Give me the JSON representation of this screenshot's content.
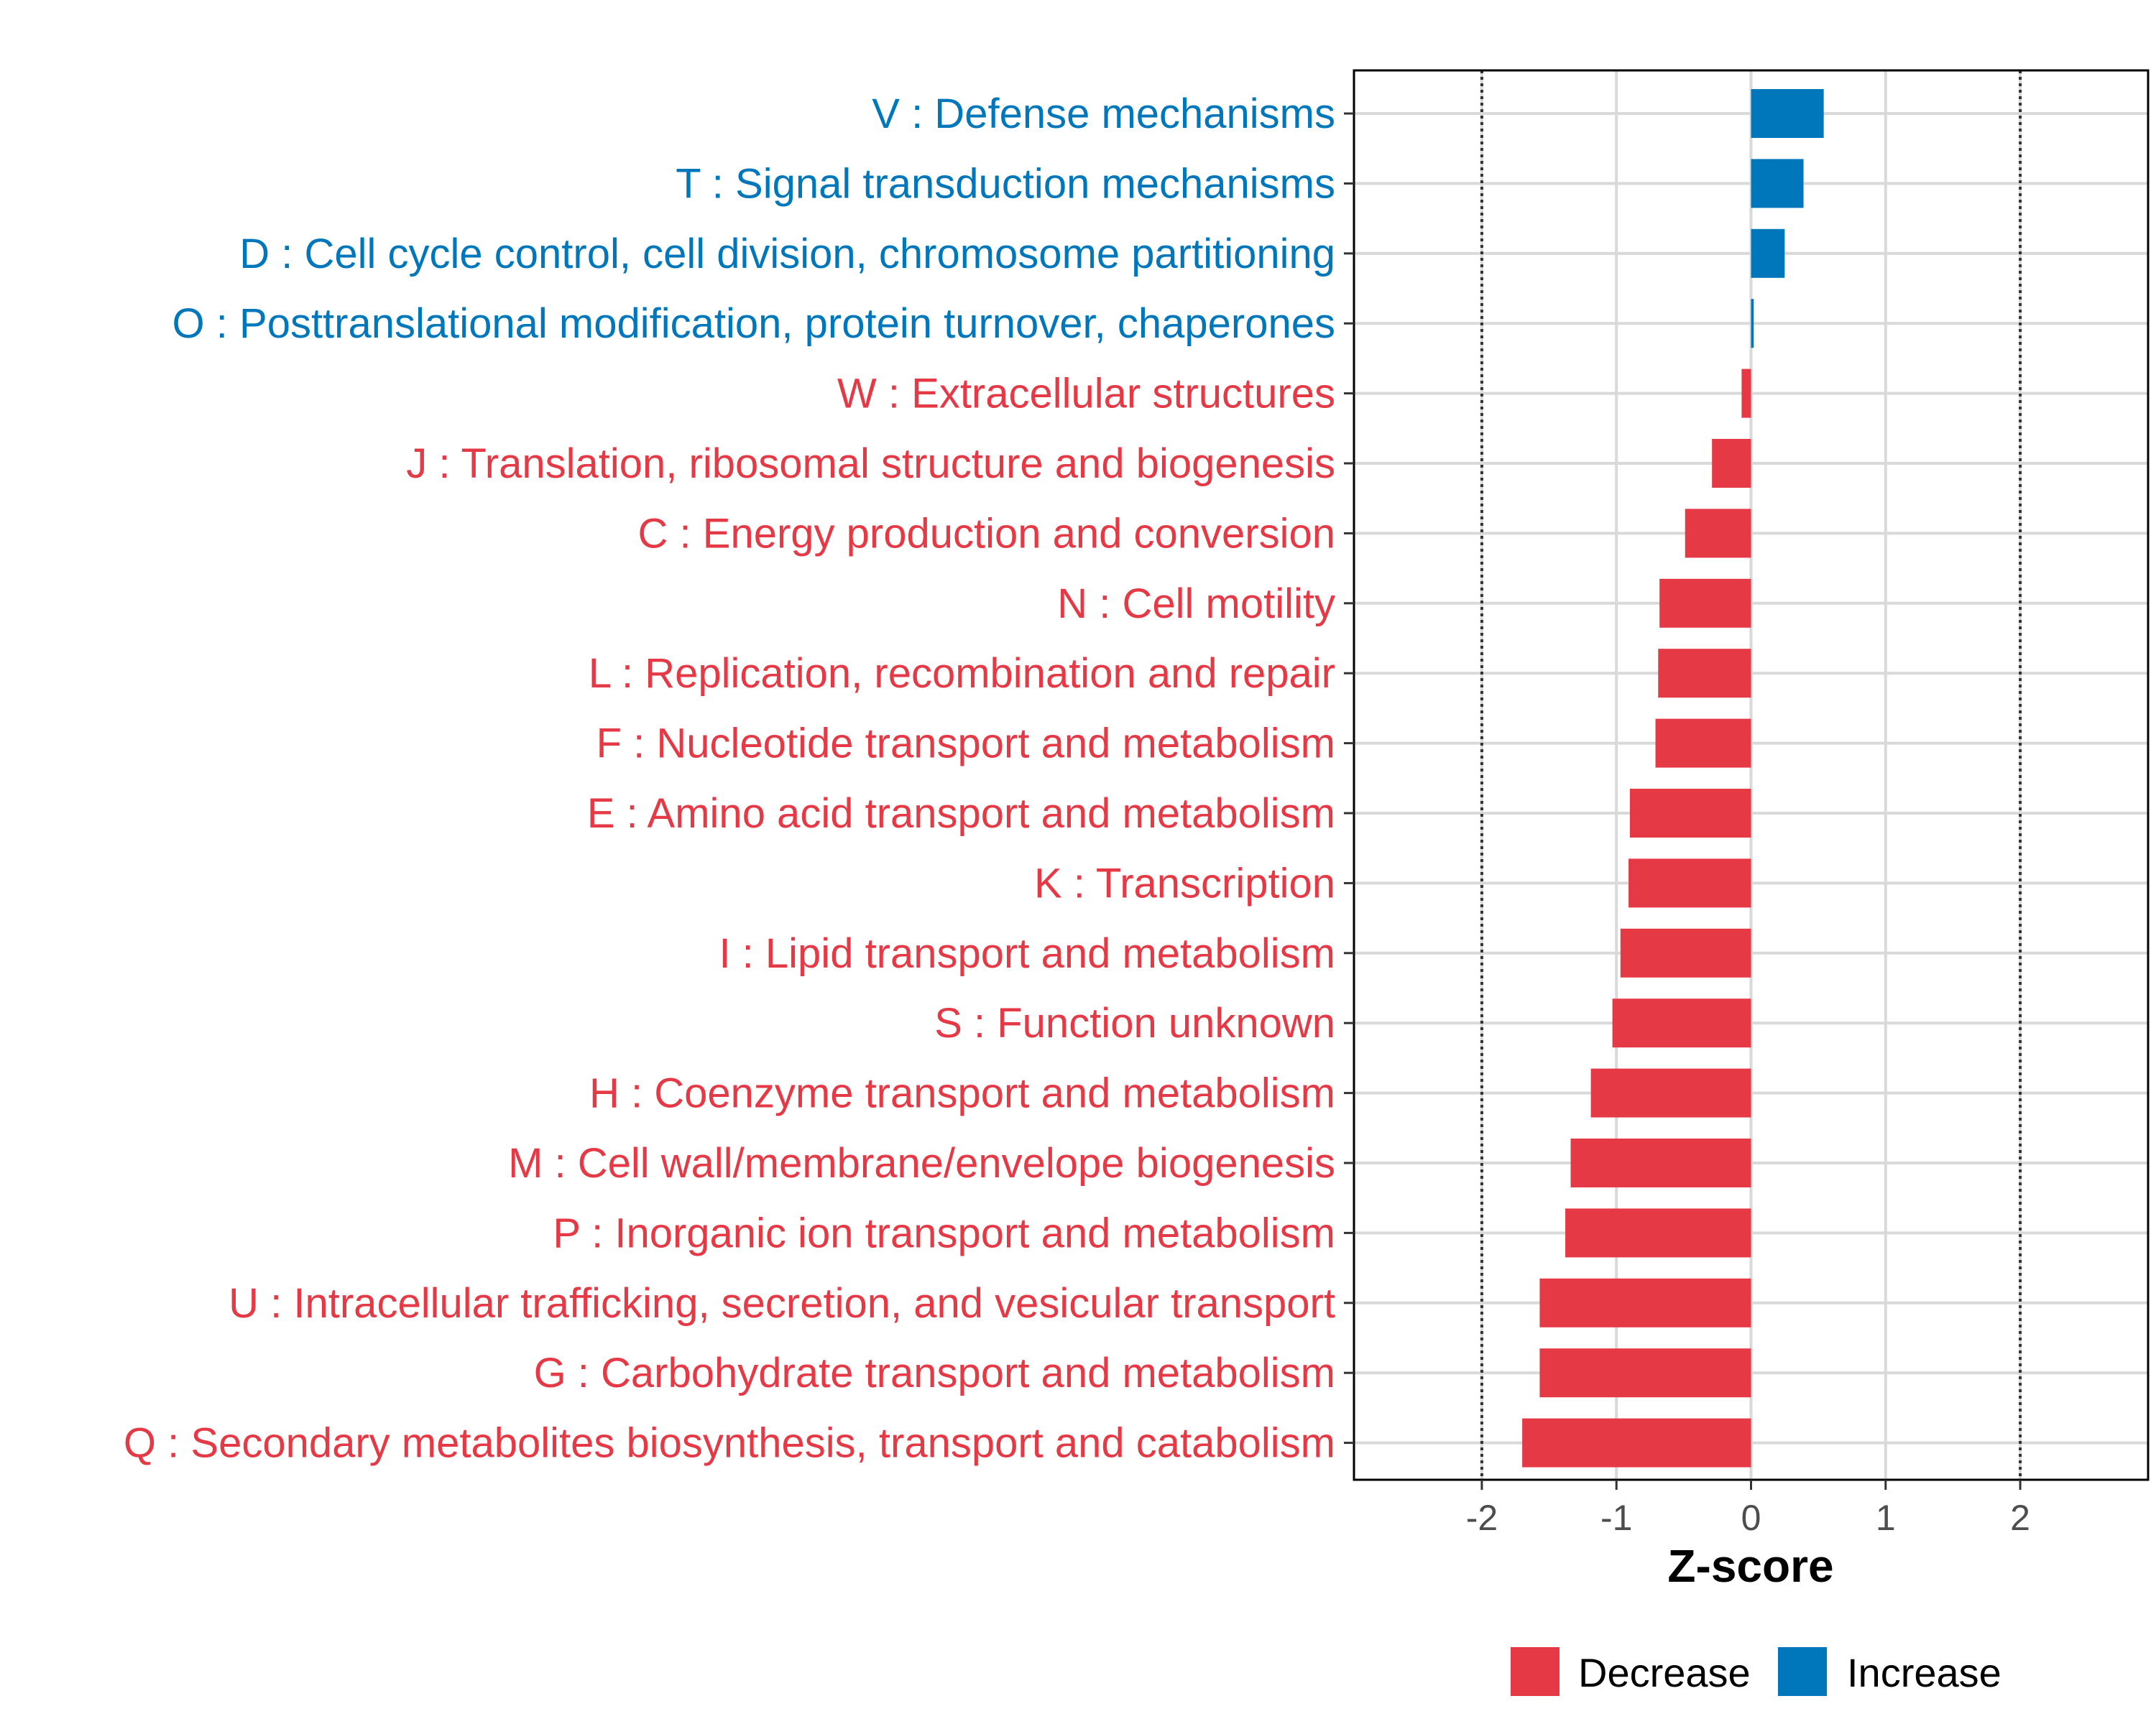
{
  "chart_data": {
    "type": "bar",
    "orientation": "horizontal",
    "xlabel": "Z-score",
    "ylabel": "",
    "xlim": [
      -2.95,
      2.95
    ],
    "xticks": [
      -2,
      -1,
      0,
      1,
      2
    ],
    "xtick_labels": [
      "-2",
      "-1",
      "0",
      "1",
      "2"
    ],
    "reference_lines": [
      -2,
      2
    ],
    "grid": true,
    "categories": [
      "V : Defense mechanisms",
      "T : Signal transduction mechanisms",
      "D : Cell cycle control, cell division, chromosome partitioning",
      "O : Posttranslational modification, protein turnover, chaperones",
      "W : Extracellular structures",
      "J : Translation, ribosomal structure and biogenesis",
      "C : Energy production and conversion",
      "N : Cell motility",
      "L : Replication, recombination and repair",
      "F : Nucleotide transport and metabolism",
      "E : Amino acid transport and metabolism",
      "K : Transcription",
      "I : Lipid transport and metabolism",
      "S : Function unknown",
      "H : Coenzyme transport and metabolism",
      "M : Cell wall/membrane/envelope biogenesis",
      "P : Inorganic ion transport and metabolism",
      "U : Intracellular trafficking, secretion, and vesicular transport",
      "G : Carbohydrate transport and metabolism",
      "Q : Secondary metabolites biosynthesis, transport and catabolism"
    ],
    "values": [
      0.54,
      0.39,
      0.25,
      0.02,
      -0.07,
      -0.29,
      -0.49,
      -0.68,
      -0.69,
      -0.71,
      -0.9,
      -0.91,
      -0.97,
      -1.03,
      -1.19,
      -1.34,
      -1.38,
      -1.57,
      -1.57,
      -1.7
    ],
    "groups": [
      "Increase",
      "Increase",
      "Increase",
      "Increase",
      "Decrease",
      "Decrease",
      "Decrease",
      "Decrease",
      "Decrease",
      "Decrease",
      "Decrease",
      "Decrease",
      "Decrease",
      "Decrease",
      "Decrease",
      "Decrease",
      "Decrease",
      "Decrease",
      "Decrease",
      "Decrease"
    ],
    "legend": {
      "position": "bottom",
      "entries": [
        {
          "label": "Decrease",
          "color": "#E63946"
        },
        {
          "label": "Increase",
          "color": "#0077BB"
        }
      ]
    }
  },
  "colors": {
    "decrease": "#E63946",
    "increase": "#0077BB"
  }
}
